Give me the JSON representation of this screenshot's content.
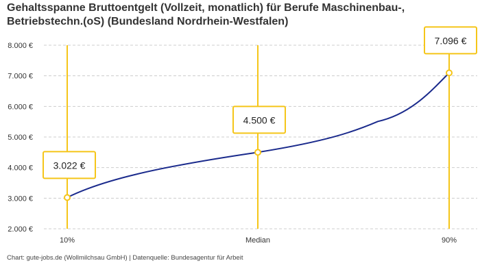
{
  "chart_data": {
    "type": "line",
    "title": "Gehaltsspanne Bruttoentgelt (Vollzeit, monatlich) für Berufe Maschinenbau-, Betriebstechn.(oS) (Bundesland Nordrhein-Westfalen)",
    "categories": [
      "10%",
      "Median",
      "90%"
    ],
    "values": [
      3022,
      4500,
      7096
    ],
    "data_labels": [
      "3.022 €",
      "4.500 €",
      "7.096 €"
    ],
    "yticks": [
      2000,
      3000,
      4000,
      5000,
      6000,
      7000,
      8000
    ],
    "ytick_labels": [
      "2.000 €",
      "3.000 €",
      "4.000 €",
      "5.000 €",
      "6.000 €",
      "7.000 €",
      "8.000 €"
    ],
    "ylim": [
      2000,
      8000
    ],
    "grid": true,
    "xlabel": "",
    "ylabel": "",
    "colors": {
      "line": "#1a2a8c",
      "marker": "#f5c518",
      "grid": "#cccccc"
    }
  },
  "source": "Chart: gute-jobs.de (Wollmilchsau GmbH) | Datenquelle: Bundesagentur für Arbeit"
}
